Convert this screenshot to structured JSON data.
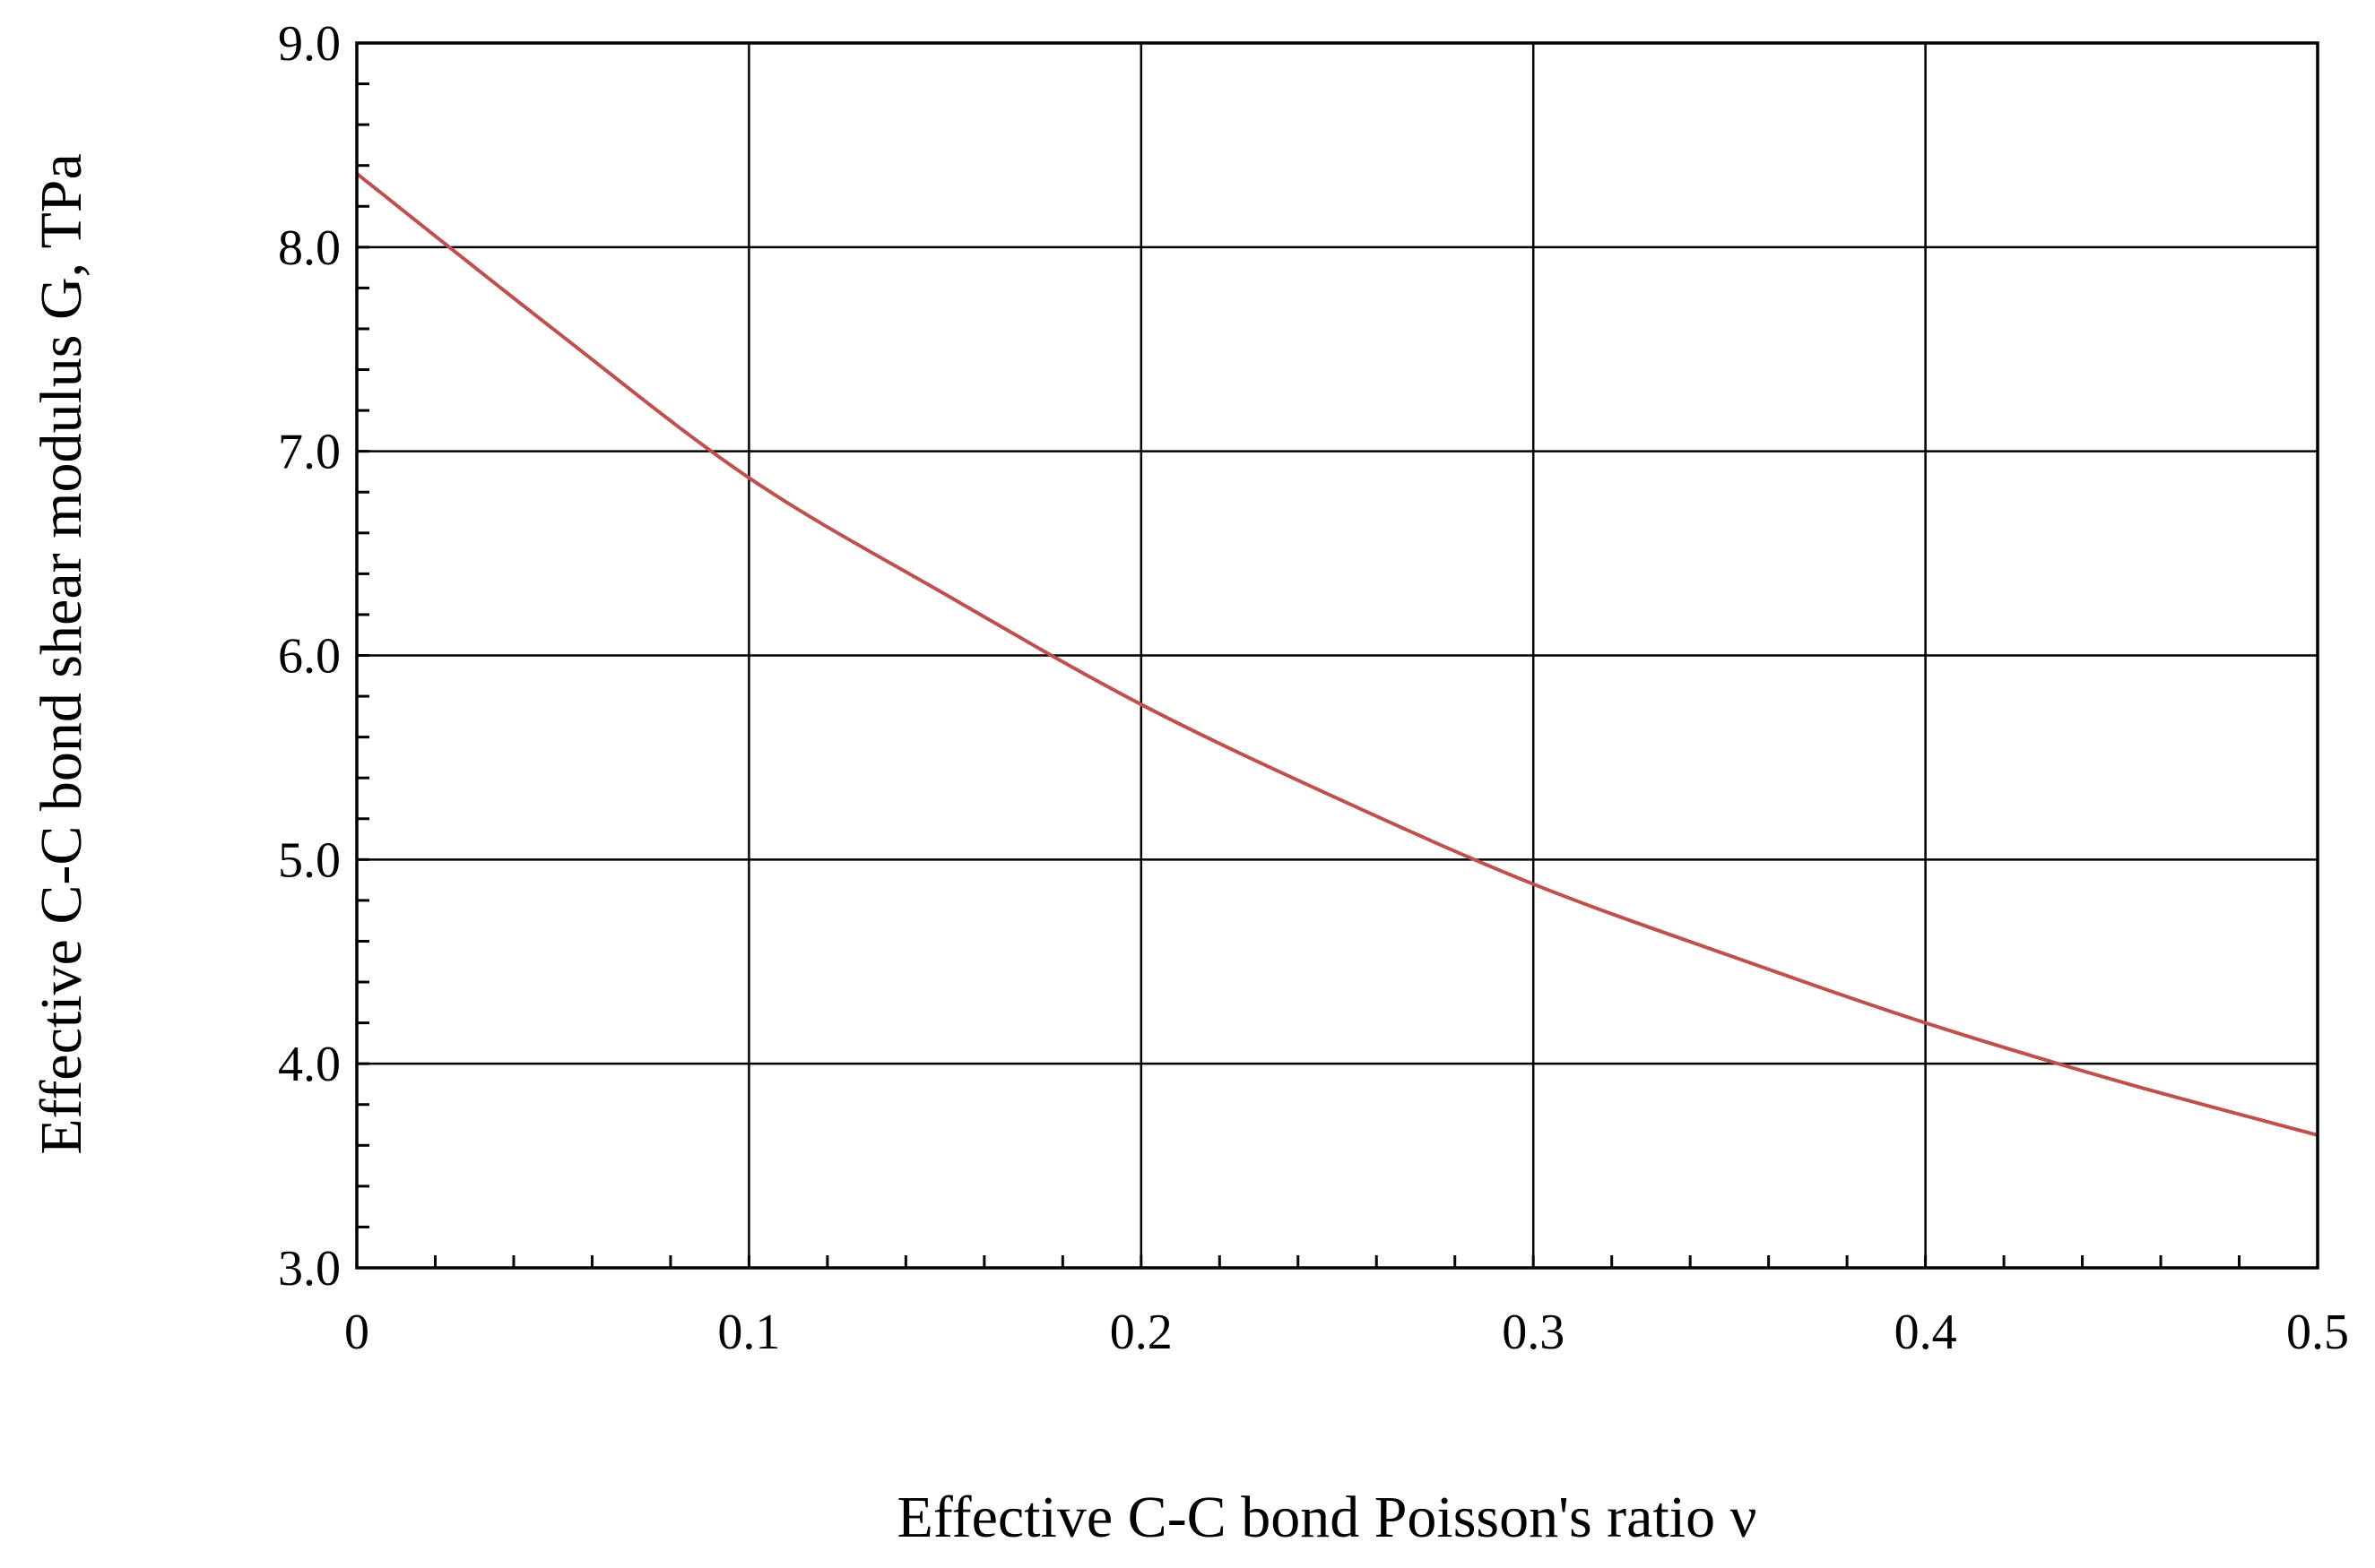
{
  "chart_data": {
    "type": "line",
    "title": "",
    "xlabel": "Effective C-C bond Poisson's ratio ν",
    "ylabel": "Effective C-C bond shear modulus G, TPa",
    "xlim": [
      0,
      0.5
    ],
    "ylim": [
      3.0,
      9.0
    ],
    "x_ticks": [
      0,
      0.1,
      0.2,
      0.3,
      0.4,
      0.5
    ],
    "x_tick_labels": [
      "0",
      "0.1",
      "0.2",
      "0.3",
      "0.4",
      "0.5"
    ],
    "y_ticks": [
      3.0,
      4.0,
      5.0,
      6.0,
      7.0,
      8.0,
      9.0
    ],
    "y_tick_labels": [
      "3.0",
      "4.0",
      "5.0",
      "6.0",
      "7.0",
      "8.0",
      "9.0"
    ],
    "x_minor_step": 0.02,
    "y_minor_step": 0.2,
    "grid": true,
    "legend": "none",
    "series": [
      {
        "color": "#c0504d",
        "x": [
          0,
          0.05,
          0.1,
          0.15,
          0.2,
          0.25,
          0.3,
          0.35,
          0.4,
          0.45,
          0.5
        ],
        "y": [
          8.36,
          7.6,
          6.87,
          6.3,
          5.76,
          5.3,
          4.88,
          4.53,
          4.2,
          3.91,
          3.65
        ]
      }
    ]
  }
}
